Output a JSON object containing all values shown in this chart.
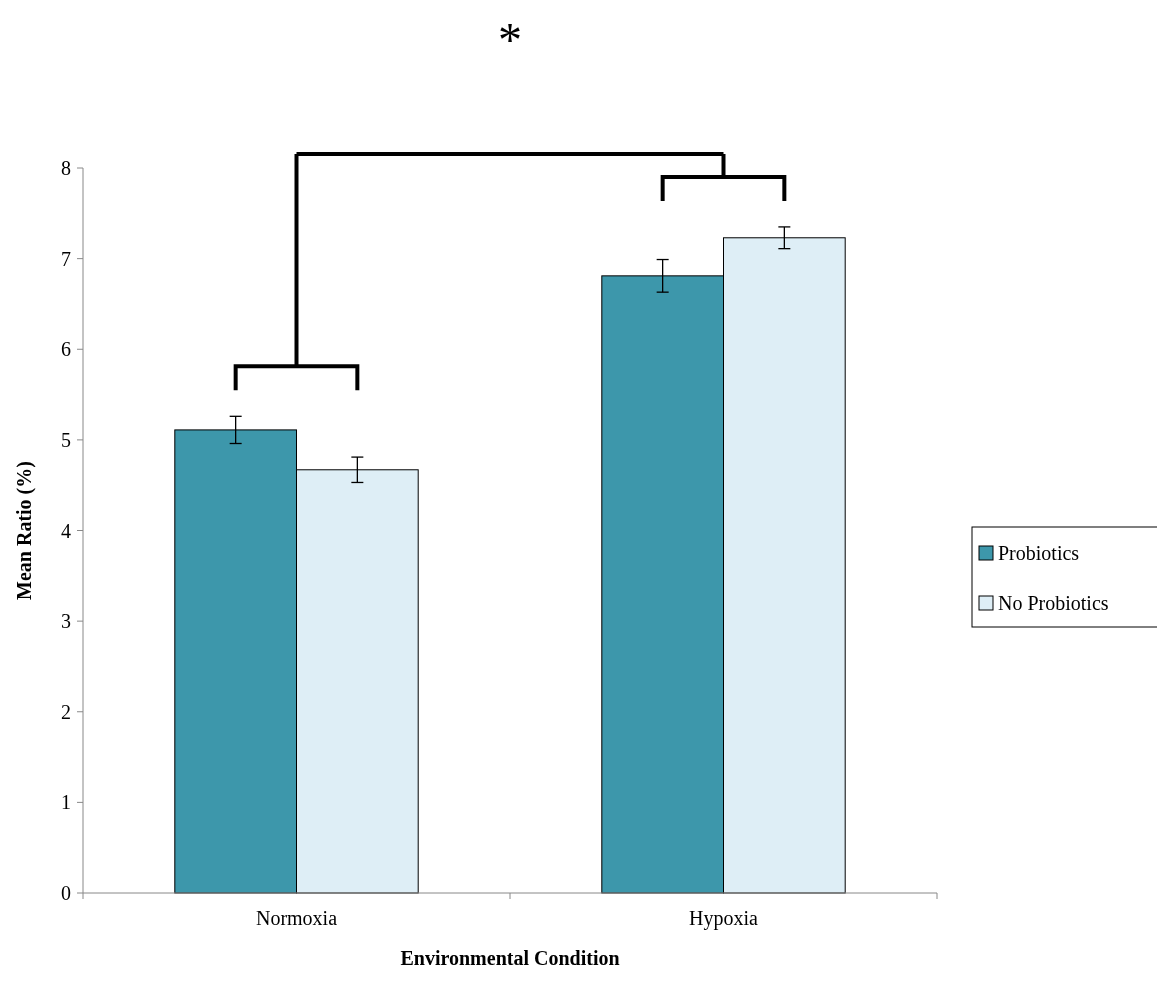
{
  "chart_data": {
    "type": "bar",
    "xlabel": "Environmental Condition",
    "ylabel": "Mean Ratio (%)",
    "categories": [
      "Normoxia",
      "Hypoxia"
    ],
    "series": [
      {
        "name": "Probiotics",
        "color": "#3d97ab",
        "values": [
          5.11,
          6.81
        ],
        "errors": [
          0.15,
          0.18
        ]
      },
      {
        "name": "No Probiotics",
        "color": "#deeef6",
        "values": [
          4.67,
          7.23
        ],
        "errors": [
          0.14,
          0.12
        ]
      }
    ],
    "ylim": [
      0,
      8
    ],
    "yticks": [
      0,
      1,
      2,
      3,
      4,
      5,
      6,
      7,
      8
    ],
    "grid": false,
    "legend": "right",
    "annotations": [
      "*"
    ]
  }
}
